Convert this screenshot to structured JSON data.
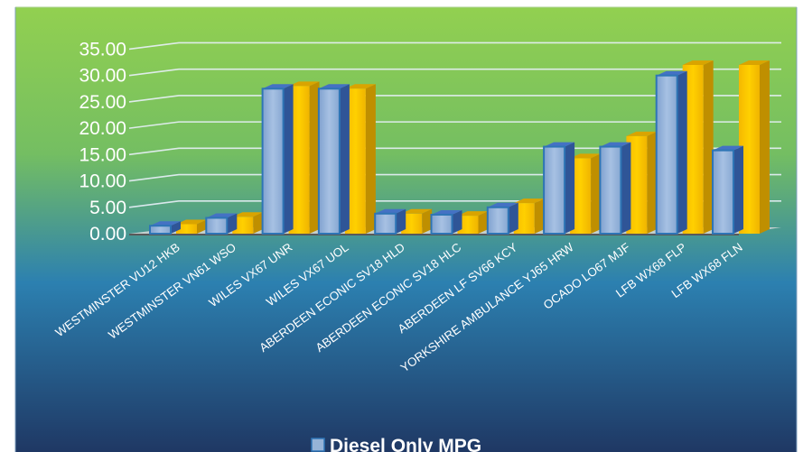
{
  "chart_data": {
    "type": "bar",
    "title": "",
    "xlabel": "",
    "ylabel": "",
    "ylim": [
      0,
      35
    ],
    "ytick_labels": [
      "0.00",
      "5.00",
      "10.00",
      "15.00",
      "20.00",
      "25.00",
      "30.00",
      "35.00"
    ],
    "categories": [
      "WESTMINSTER VU12 HKB",
      "WESTMINSTER VN61 WSO",
      "WILES VX67 UNR",
      "WILES VX67 UOL",
      "ABERDEEN ECONIC SV18 HLD",
      "ABERDEEN ECONIC SV18 HLC",
      "ABERDEEN LF SV66 KCY",
      "YORKSHIRE AMBULANCE YJ65 HRW",
      "OCADO LO67 MJF",
      "LFB WX68 FLP",
      "LFB WX68 FLN"
    ],
    "series": [
      {
        "name": "Diesel Only MPG",
        "values": [
          1.5,
          3.0,
          27.5,
          27.5,
          3.8,
          3.6,
          5.0,
          16.5,
          16.5,
          30.0,
          15.8
        ]
      },
      {
        "values": [
          1.8,
          3.2,
          28.0,
          27.5,
          3.8,
          3.4,
          5.8,
          14.3,
          18.5,
          32.0,
          32.0
        ]
      }
    ],
    "grid": true,
    "legend": "bottom",
    "colors": {
      "series_blue_fill": "#95b3d7",
      "series_blue_edge": "#2e75b6",
      "series_gold_fill": "#ffc000",
      "series_gold_side": "#c09000",
      "background_top": "#92d050",
      "background_bottom": "#1f3864",
      "text": "#ffffff"
    }
  }
}
